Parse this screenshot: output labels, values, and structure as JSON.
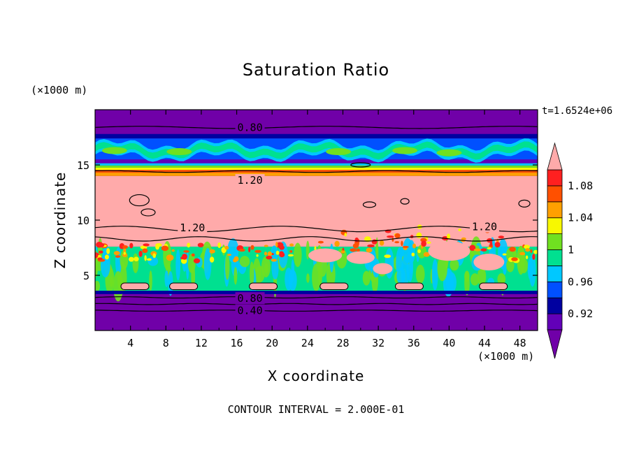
{
  "chart_data": {
    "type": "heatmap",
    "title": "Saturation Ratio",
    "xlabel": "X coordinate",
    "ylabel": "Z coordinate",
    "x_unit": "(×1000 m)",
    "y_unit": "(×1000 m)",
    "time_label": "t=1.6524e+06",
    "footer": "CONTOUR INTERVAL = 2.000E-01",
    "xlim": [
      0,
      50
    ],
    "ylim": [
      0,
      20
    ],
    "x_ticks": [
      "4",
      "8",
      "12",
      "16",
      "20",
      "24",
      "28",
      "32",
      "36",
      "40",
      "44",
      "48"
    ],
    "y_ticks": [
      "5",
      "10",
      "15"
    ],
    "colorbar": {
      "labels": [
        "1.08",
        "1.04",
        "1",
        "0.96",
        "0.92"
      ],
      "levels": [
        0.9,
        0.92,
        0.94,
        0.96,
        0.98,
        1.0,
        1.02,
        1.04,
        1.06,
        1.08,
        1.1
      ],
      "colors": {
        "under": "#7000a8",
        "0.90-0.92": "#6200b8",
        "0.92-0.94": "#0000a0",
        "0.94-0.96": "#0050ff",
        "0.96-0.98": "#00c8ff",
        "0.98-1.00": "#00e090",
        "1.00-1.02": "#70e020",
        "1.02-1.04": "#f8f800",
        "1.04-1.06": "#ffa000",
        "1.06-1.08": "#ff5000",
        "1.08-1.10": "#ff2020",
        "over": "#ffaaaa"
      }
    },
    "contour_labels": [
      {
        "text": "0.80",
        "x": 17.5,
        "z": 18.4
      },
      {
        "text": "1.20",
        "x": 17.5,
        "z": 13.6
      },
      {
        "text": "1.20",
        "x": 11,
        "z": 9.3
      },
      {
        "text": "1.20",
        "x": 44,
        "z": 9.4
      },
      {
        "text": "0.80",
        "x": 17.5,
        "z": 2.9
      },
      {
        "text": "0.40",
        "x": 17.5,
        "z": 1.8
      }
    ],
    "bands": [
      {
        "z": [
          0,
          3.5
        ],
        "range": "< 0.90"
      },
      {
        "z": [
          3.5,
          7.5
        ],
        "range": "0.96 - 1.10 (mixed, saturated boundary layer)"
      },
      {
        "z": [
          7.5,
          14.0
        ],
        "range": "> 1.10"
      },
      {
        "z": [
          14.0,
          15.0
        ],
        "range": "0.92 - 1.10 (sharp gradient)"
      },
      {
        "z": [
          15.0,
          17.5
        ],
        "range": "0.92 - 1.02 (wavy layer)"
      },
      {
        "z": [
          17.5,
          20
        ],
        "range": "< 0.90"
      }
    ]
  }
}
